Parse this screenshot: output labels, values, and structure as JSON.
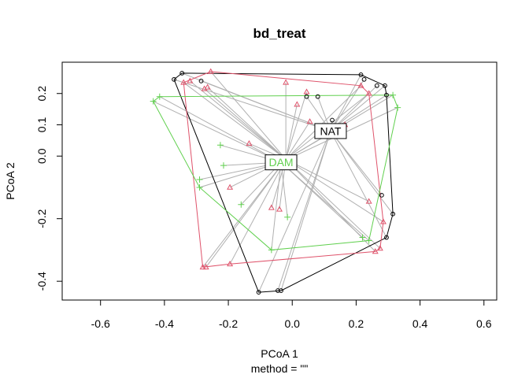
{
  "chart_data": {
    "type": "scatter",
    "title": "bd_treat",
    "xlabel": "PCoA 1",
    "ylabel": "PCoA 2",
    "sub": "method = \"\"",
    "xlim": [
      -0.72,
      0.64
    ],
    "ylim": [
      -0.46,
      0.3
    ],
    "xticks": [
      -0.6,
      -0.4,
      -0.2,
      0.0,
      0.2,
      0.4,
      0.6
    ],
    "xtick_labels": [
      "-0.6",
      "-0.4",
      "-0.2",
      "0.0",
      "0.2",
      "0.4",
      "0.6"
    ],
    "yticks": [
      0.2,
      0.1,
      0.0,
      -0.2,
      -0.4
    ],
    "ytick_labels": [
      "0.2",
      "0.1",
      "0.0",
      "-0.2",
      "-0.4"
    ],
    "centroid": [
      -0.02,
      -0.01
    ],
    "spoke_color": "#b0b0b0",
    "series": [
      {
        "group": "black",
        "color": "#000000",
        "marker": "circle",
        "label": "NAT",
        "label_color": "#000000",
        "centroid": [
          0.12,
          0.08
        ],
        "points": [
          [
            -0.37,
            0.245
          ],
          [
            -0.345,
            0.265
          ],
          [
            -0.285,
            0.24
          ],
          [
            0.045,
            0.19
          ],
          [
            0.08,
            0.19
          ],
          [
            0.125,
            0.115
          ],
          [
            0.215,
            0.26
          ],
          [
            0.225,
            0.245
          ],
          [
            0.265,
            0.225
          ],
          [
            0.29,
            0.225
          ],
          [
            0.295,
            0.195
          ],
          [
            0.28,
            -0.125
          ],
          [
            0.315,
            -0.185
          ],
          [
            0.295,
            -0.26
          ],
          [
            -0.105,
            -0.435
          ],
          [
            -0.045,
            -0.43
          ],
          [
            -0.035,
            -0.43
          ]
        ],
        "hull": [
          [
            -0.37,
            0.245
          ],
          [
            -0.345,
            0.265
          ],
          [
            0.215,
            0.26
          ],
          [
            0.29,
            0.225
          ],
          [
            0.295,
            0.195
          ],
          [
            0.315,
            -0.185
          ],
          [
            0.295,
            -0.26
          ],
          [
            -0.035,
            -0.43
          ],
          [
            -0.105,
            -0.435
          ],
          [
            -0.37,
            0.245
          ]
        ]
      },
      {
        "group": "red",
        "color": "#DF536B",
        "marker": "triangle",
        "label": "",
        "centroid": [
          -0.02,
          -0.01
        ],
        "points": [
          [
            -0.255,
            0.27
          ],
          [
            -0.34,
            0.235
          ],
          [
            -0.275,
            0.215
          ],
          [
            -0.265,
            0.22
          ],
          [
            -0.32,
            0.24
          ],
          [
            -0.02,
            0.235
          ],
          [
            0.045,
            0.205
          ],
          [
            0.015,
            0.165
          ],
          [
            0.055,
            0.11
          ],
          [
            0.165,
            0.1
          ],
          [
            0.215,
            0.225
          ],
          [
            0.24,
            0.2
          ],
          [
            -0.135,
            0.04
          ],
          [
            -0.195,
            -0.1
          ],
          [
            -0.065,
            -0.165
          ],
          [
            -0.04,
            -0.17
          ],
          [
            0.24,
            -0.145
          ],
          [
            0.285,
            -0.21
          ],
          [
            0.275,
            -0.295
          ],
          [
            0.26,
            -0.305
          ],
          [
            -0.28,
            -0.355
          ],
          [
            -0.27,
            -0.355
          ],
          [
            -0.195,
            -0.345
          ]
        ],
        "hull": [
          [
            -0.255,
            0.27
          ],
          [
            0.215,
            0.225
          ],
          [
            0.24,
            0.2
          ],
          [
            0.285,
            -0.21
          ],
          [
            0.275,
            -0.295
          ],
          [
            0.26,
            -0.305
          ],
          [
            -0.195,
            -0.345
          ],
          [
            -0.28,
            -0.355
          ],
          [
            -0.34,
            0.235
          ],
          [
            -0.255,
            0.27
          ]
        ]
      },
      {
        "group": "green",
        "color": "#61D04F",
        "marker": "plus",
        "label": "DAM",
        "label_color": "#61D04F",
        "centroid": [
          -0.035,
          -0.02
        ],
        "points": [
          [
            -0.435,
            0.175
          ],
          [
            -0.415,
            0.19
          ],
          [
            -0.225,
            0.035
          ],
          [
            -0.215,
            -0.03
          ],
          [
            -0.29,
            -0.075
          ],
          [
            -0.29,
            -0.1
          ],
          [
            -0.16,
            -0.155
          ],
          [
            -0.015,
            -0.195
          ],
          [
            0.315,
            0.195
          ],
          [
            0.33,
            0.155
          ],
          [
            0.22,
            -0.26
          ],
          [
            0.24,
            -0.27
          ],
          [
            -0.065,
            -0.3
          ]
        ],
        "hull": [
          [
            -0.435,
            0.175
          ],
          [
            -0.415,
            0.19
          ],
          [
            0.315,
            0.195
          ],
          [
            0.33,
            0.155
          ],
          [
            0.24,
            -0.27
          ],
          [
            -0.065,
            -0.3
          ],
          [
            -0.29,
            -0.1
          ],
          [
            -0.435,
            0.175
          ]
        ]
      }
    ]
  }
}
